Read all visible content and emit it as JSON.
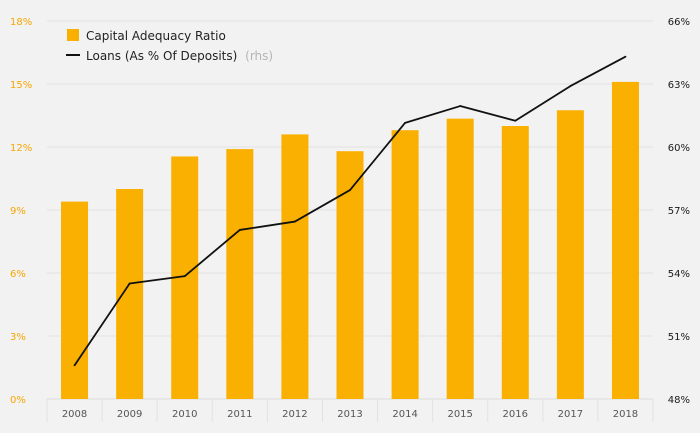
{
  "chart_data": {
    "type": "bar",
    "categories": [
      "2008",
      "2009",
      "2010",
      "2011",
      "2012",
      "2013",
      "2014",
      "2015",
      "2016",
      "2017",
      "2018"
    ],
    "series": [
      {
        "name": "Capital Adequacy Ratio",
        "type": "bar",
        "axis": "left",
        "color": "#f9b000",
        "values": [
          9.4,
          10.0,
          11.55,
          11.9,
          12.6,
          11.8,
          12.8,
          13.35,
          13.0,
          13.75,
          15.1
        ]
      },
      {
        "name": "Loans (As % Of Deposits)",
        "note": "(rhs)",
        "type": "line",
        "axis": "right",
        "color": "#111111",
        "values": [
          49.6,
          53.5,
          53.85,
          56.05,
          56.45,
          57.95,
          61.15,
          61.95,
          61.25,
          62.9,
          64.3
        ]
      }
    ],
    "y_left": {
      "lim": [
        0,
        18
      ],
      "ticks": [
        0,
        3,
        6,
        9,
        12,
        15,
        18
      ],
      "tick_labels": [
        "0%",
        "3%",
        "6%",
        "9%",
        "12%",
        "15%",
        "18%"
      ]
    },
    "y_right": {
      "lim": [
        48,
        66
      ],
      "ticks": [
        48,
        51,
        54,
        57,
        60,
        63,
        66
      ],
      "tick_labels": [
        "48%",
        "51%",
        "54%",
        "57%",
        "60%",
        "63%",
        "66%"
      ]
    },
    "title": "",
    "xlabel": "",
    "ylabel": "",
    "grid": true,
    "legend_position": "top-left",
    "colors": {
      "left_axis": "#f7a600",
      "right_axis": "#1a1a1a",
      "grid": "#e2e2e2",
      "background": "#f2f2f2"
    }
  }
}
